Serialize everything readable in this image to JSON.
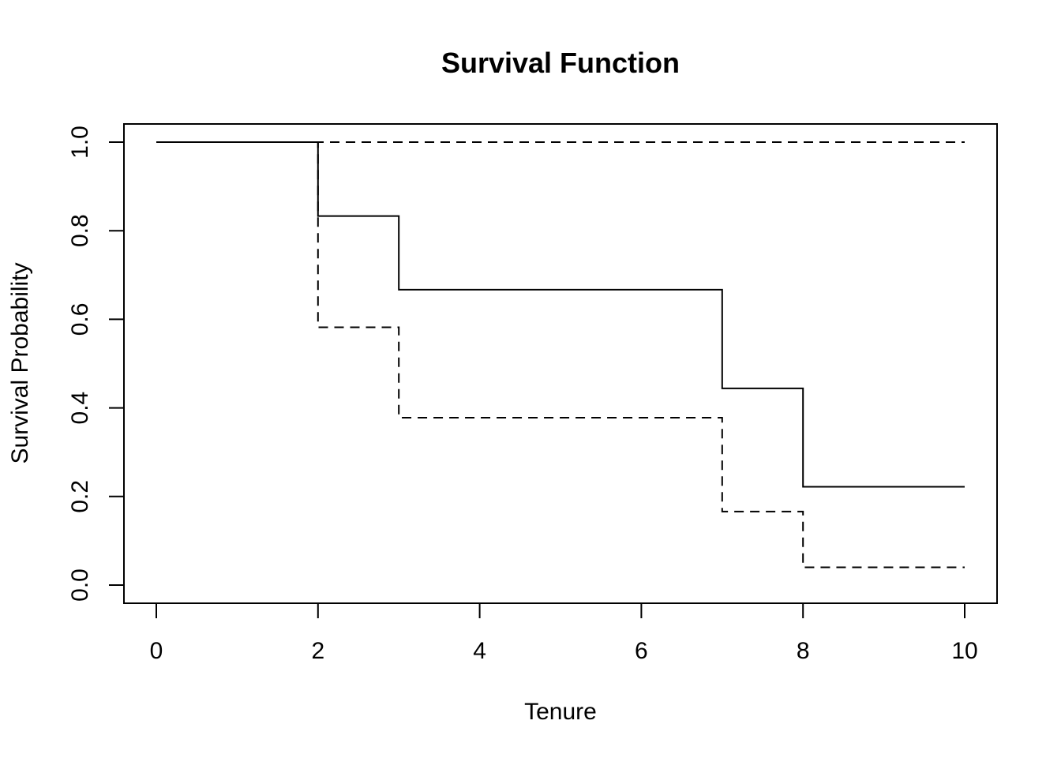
{
  "chart_data": {
    "type": "line",
    "step": true,
    "title": "Survival Function",
    "xlabel": "Tenure",
    "ylabel": "Survival Probability",
    "xlim": [
      0,
      10
    ],
    "ylim": [
      0,
      1
    ],
    "x_ticks": [
      0,
      2,
      4,
      6,
      8,
      10
    ],
    "x_tick_labels": [
      "0",
      "2",
      "4",
      "6",
      "8",
      "10"
    ],
    "y_ticks": [
      0.0,
      0.2,
      0.4,
      0.6,
      0.8,
      1.0
    ],
    "y_tick_labels": [
      "0.0",
      "0.2",
      "0.4",
      "0.6",
      "0.8",
      "1.0"
    ],
    "grid": false,
    "legend": "none",
    "series": [
      {
        "line_style": "solid",
        "color": "#000000",
        "x": [
          0,
          2,
          3,
          7,
          8,
          10
        ],
        "y": [
          1.0,
          0.833,
          0.667,
          0.444,
          0.222,
          0.222
        ]
      },
      {
        "line_style": "dashed",
        "color": "#000000",
        "x": [
          0,
          2,
          3,
          7,
          8,
          10
        ],
        "y": [
          1.0,
          1.0,
          1.0,
          1.0,
          1.0,
          1.0
        ]
      },
      {
        "line_style": "dashed",
        "color": "#000000",
        "x": [
          0,
          2,
          3,
          7,
          8,
          10
        ],
        "y": [
          1.0,
          0.582,
          0.378,
          0.166,
          0.04,
          0.04
        ]
      }
    ]
  }
}
